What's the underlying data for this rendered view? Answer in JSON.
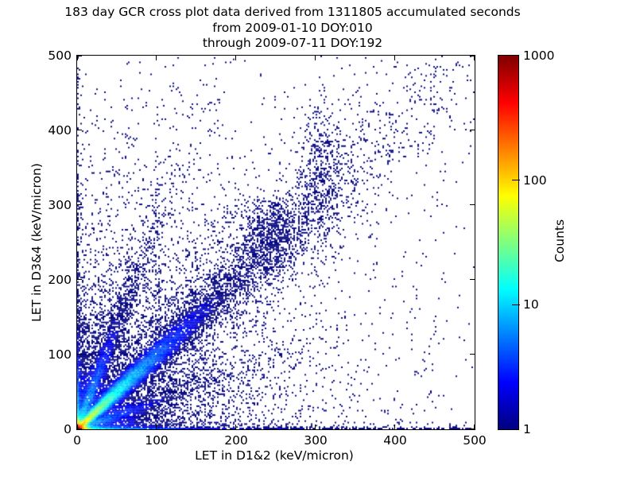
{
  "figure": {
    "background": "#ffffff",
    "text_color": "#000000"
  },
  "chart_data": {
    "type": "heatmap",
    "subtype": "2D histogram cross plot (scatter density, log color scale)",
    "title": "183 day GCR cross plot data derived from 1311805 accumulated seconds",
    "title_lines": [
      "183 day GCR cross plot data derived from 1311805 accumulated seconds",
      "from 2009-01-10 DOY:010",
      "through 2009-07-11 DOY:192"
    ],
    "xlabel": "LET in D1&2 (keV/micron)",
    "ylabel": "LET in D3&4 (keV/micron)",
    "xlim": [
      0,
      500
    ],
    "ylim": [
      0,
      500
    ],
    "xticks": [
      0,
      100,
      200,
      300,
      400,
      500
    ],
    "yticks": [
      0,
      100,
      200,
      300,
      400,
      500
    ],
    "grid": false,
    "point_color_min": "#000080",
    "point_color_max": "#800000",
    "colorbar": {
      "label": "Counts",
      "scale": "log",
      "vmin": 1,
      "vmax": 1000,
      "ticks": [
        1,
        10,
        100,
        1000
      ],
      "colormap": "jet",
      "position": "right"
    },
    "bin_size": 2,
    "seed": 42,
    "density_model_features": [
      {
        "name": "origin-core",
        "type": "corner",
        "amp": 1600,
        "sx": 3.2,
        "sy": 3.2
      },
      {
        "name": "x-axis-band",
        "type": "xband",
        "h": 1.6,
        "terms": [
          [
            80,
            12
          ],
          [
            12,
            60
          ],
          [
            2.2,
            250
          ]
        ],
        "base": 1.3
      },
      {
        "name": "y-axis-band",
        "type": "yband",
        "h": 1.6,
        "terms": [
          [
            55,
            12
          ],
          [
            8,
            50
          ],
          [
            1.5,
            180
          ]
        ],
        "base": 0.6
      },
      {
        "name": "main-diagonal-ray",
        "type": "ray",
        "m": 1.0,
        "terms": [
          [
            120,
            20
          ],
          [
            25,
            64
          ],
          [
            4,
            127
          ]
        ],
        "w0": 1.5,
        "wg": 0.05
      },
      {
        "name": "steep-ray",
        "type": "ray",
        "m": 2.8,
        "terms": [
          [
            7,
            80
          ]
        ],
        "w0": 2,
        "wg": 0.035
      },
      {
        "name": "shallow-ray",
        "type": "ray",
        "m": 0.38,
        "terms": [
          [
            4,
            70
          ]
        ],
        "w0": 2,
        "wg": 0.035
      },
      {
        "name": "origin-fan",
        "type": "corner",
        "amp": 5,
        "sx": 55,
        "sy": 55
      },
      {
        "name": "origin-halo",
        "type": "corner",
        "amp": 0.3,
        "sx": 170,
        "sy": 170
      },
      {
        "name": "diagonal-band",
        "type": "diagband",
        "amp": 0.5,
        "offset": 15,
        "rscale": 150,
        "sigma": 65
      },
      {
        "name": "heavy-ion-cluster",
        "type": "cluster",
        "amp": 0.8,
        "cx": 243,
        "cy": 258,
        "sx": 20,
        "sy": 26
      },
      {
        "name": "upper-cluster",
        "type": "cluster",
        "amp": 0.45,
        "cx": 308,
        "cy": 345,
        "sx": 13,
        "sy": 42
      },
      {
        "name": "vertical-streak-1",
        "type": "cluster",
        "amp": 0.13,
        "cx": 63,
        "cy": 190,
        "sx": 2.5,
        "sy": 110
      },
      {
        "name": "vertical-streak-2",
        "type": "cluster",
        "amp": 0.11,
        "cx": 100,
        "cy": 205,
        "sx": 2.5,
        "sy": 110
      },
      {
        "name": "uniform-background",
        "type": "uniform",
        "amp": 0.0025
      }
    ]
  }
}
